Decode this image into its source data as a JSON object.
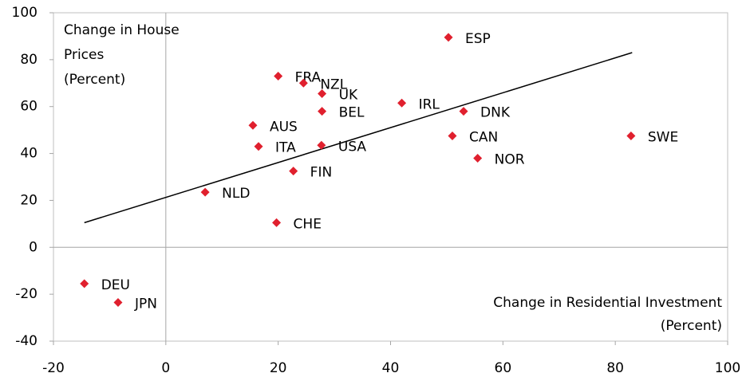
{
  "chart_data": {
    "type": "scatter",
    "y_label_lines": [
      "Change in House",
      "Prices",
      "(Percent)"
    ],
    "x_label_lines": [
      "Change in Residential Investment",
      "(Percent)"
    ],
    "labels": [
      "FRA",
      "NZL",
      "UK",
      "BEL",
      "AUS",
      "ITA",
      "USA",
      "FIN",
      "NLD",
      "CHE",
      "ESP",
      "IRL",
      "DNK",
      "CAN",
      "NOR",
      "SWE",
      "DEU",
      "JPN"
    ],
    "x": [
      20,
      24.5,
      27.8,
      27.8,
      15.5,
      16.5,
      27.7,
      22.7,
      7,
      19.7,
      50.3,
      42,
      53,
      51,
      55.5,
      82.8,
      -14.5,
      -8.5
    ],
    "values": [
      73,
      70,
      65.5,
      58,
      52,
      43,
      43.5,
      32.5,
      23.5,
      10.5,
      89.5,
      61.5,
      58,
      47.5,
      38,
      47.5,
      -15.5,
      -23.5
    ],
    "color": "#e0202e",
    "trendline": {
      "x": [
        -14.5,
        83
      ],
      "y": [
        10.5,
        83
      ],
      "color": "#000000"
    },
    "xlim": [
      -20,
      100
    ],
    "ylim": [
      -40,
      100
    ],
    "xticks": [
      -20,
      0,
      20,
      40,
      60,
      80,
      100
    ],
    "yticks": [
      -40,
      -20,
      0,
      20,
      40,
      60,
      80,
      100
    ]
  }
}
